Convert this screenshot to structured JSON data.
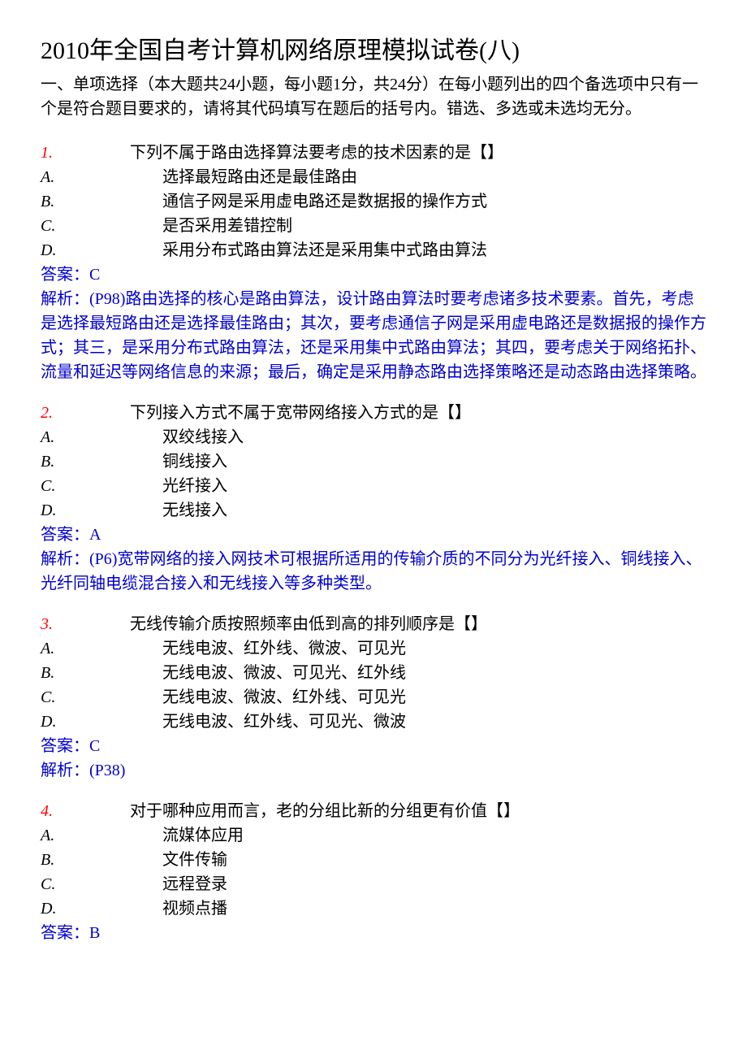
{
  "title": "2010年全国自考计算机网络原理模拟试卷(八)",
  "section_intro": "一、单项选择（本大题共24小题，每小题1分，共24分）在每小题列出的四个备选项中只有一个是符合题目要求的，请将其代码填写在题后的括号内。错选、多选或未选均无分。",
  "questions": [
    {
      "num": "1.",
      "text": "下列不属于路由选择算法要考虑的技术因素的是【】",
      "options": [
        {
          "label": "A.",
          "text": "选择最短路由还是最佳路由"
        },
        {
          "label": "B.",
          "text": "通信子网是采用虚电路还是数据报的操作方式"
        },
        {
          "label": "C.",
          "text": "是否采用差错控制"
        },
        {
          "label": "D.",
          "text": "采用分布式路由算法还是采用集中式路由算法"
        }
      ],
      "answer": "答案：C",
      "explain": "解析：(P98)路由选择的核心是路由算法，设计路由算法时要考虑诸多技术要素。首先，考虑是选择最短路由还是选择最佳路由；其次，要考虑通信子网是采用虚电路还是数据报的操作方式；其三，是采用分布式路由算法，还是采用集中式路由算法；其四，要考虑关于网络拓扑、流量和延迟等网络信息的来源；最后，确定是采用静态路由选择策略还是动态路由选择策略。"
    },
    {
      "num": "2.",
      "text": "下列接入方式不属于宽带网络接入方式的是【】",
      "options": [
        {
          "label": "A.",
          "text": "双绞线接入"
        },
        {
          "label": "B.",
          "text": "铜线接入"
        },
        {
          "label": "C.",
          "text": "光纤接入"
        },
        {
          "label": "D.",
          "text": "无线接入"
        }
      ],
      "answer": "答案：A",
      "explain": "解析：(P6)宽带网络的接入网技术可根据所适用的传输介质的不同分为光纤接入、铜线接入、光纤同轴电缆混合接入和无线接入等多种类型。"
    },
    {
      "num": "3.",
      "text": "无线传输介质按照频率由低到高的排列顺序是【】",
      "options": [
        {
          "label": "A.",
          "text": "无线电波、红外线、微波、可见光"
        },
        {
          "label": "B.",
          "text": "无线电波、微波、可见光、红外线"
        },
        {
          "label": "C.",
          "text": "无线电波、微波、红外线、可见光"
        },
        {
          "label": "D.",
          "text": "无线电波、红外线、可见光、微波"
        }
      ],
      "answer": "答案：C",
      "explain": "解析：(P38)"
    },
    {
      "num": "4.",
      "text": "对于哪种应用而言，老的分组比新的分组更有价值【】",
      "options": [
        {
          "label": "A.",
          "text": "流媒体应用"
        },
        {
          "label": "B.",
          "text": "文件传输"
        },
        {
          "label": "C.",
          "text": "远程登录"
        },
        {
          "label": "D.",
          "text": "视频点播"
        }
      ],
      "answer": "答案：B",
      "explain": ""
    }
  ],
  "colors": {
    "qnum": "#ff0000",
    "answer": "#0000cc",
    "text": "#000000",
    "background": "#ffffff"
  }
}
